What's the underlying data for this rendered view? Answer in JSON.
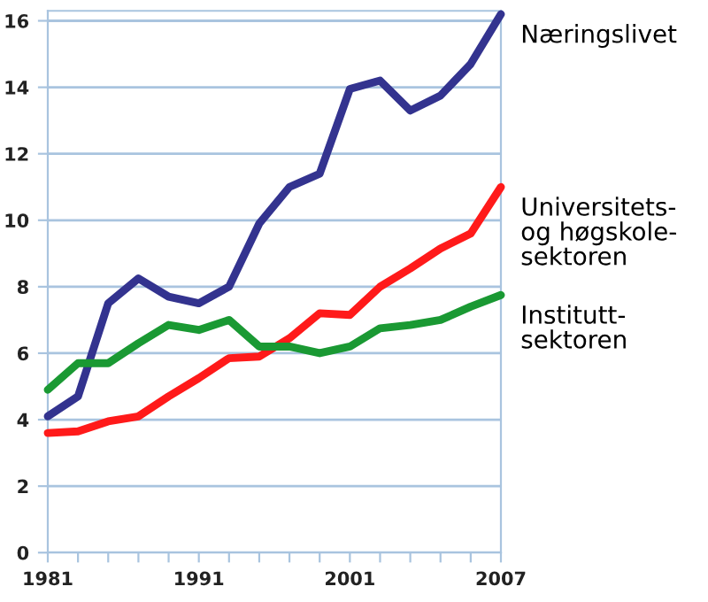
{
  "chart_data": {
    "type": "line",
    "categories": [
      "1981",
      null,
      null,
      null,
      null,
      "1991",
      null,
      null,
      null,
      null,
      "2001",
      null,
      null,
      null,
      null,
      "2007"
    ],
    "series": [
      {
        "name": "Næringslivet",
        "color": "#33338f",
        "values": [
          4.1,
          4.7,
          7.5,
          8.25,
          7.7,
          7.5,
          8.0,
          9.9,
          11.0,
          11.4,
          13.95,
          14.2,
          13.3,
          13.75,
          14.7,
          16.2
        ]
      },
      {
        "name": "Universitets-\nog høgskole-\nsektoren",
        "color": "#ff1a1a",
        "values": [
          3.6,
          3.65,
          3.95,
          4.1,
          4.7,
          5.25,
          5.85,
          5.9,
          6.45,
          7.2,
          7.15,
          8.0,
          8.55,
          9.15,
          9.6,
          11.0
        ]
      },
      {
        "name": "Institutt-\nsektoren",
        "color": "#1a9933",
        "values": [
          4.9,
          5.7,
          5.7,
          6.3,
          6.85,
          6.7,
          7.0,
          6.2,
          6.2,
          6.0,
          6.2,
          6.75,
          6.85,
          7.0,
          7.4,
          7.75
        ]
      }
    ],
    "ylim": [
      0,
      16.3
    ],
    "yticks": [
      0,
      2,
      4,
      6,
      8,
      10,
      12,
      14,
      16
    ],
    "grid": "y",
    "legend": false,
    "marker": "none",
    "line_style": "solid"
  }
}
